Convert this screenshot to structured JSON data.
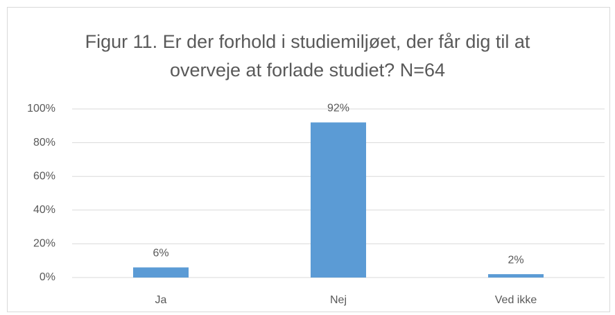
{
  "chart_data": {
    "type": "bar",
    "title": "Figur 11. Er der forhold i studiemiljøet, der får dig til at overveje at forlade studiet? N=64",
    "categories": [
      "Ja",
      "Nej",
      "Ved ikke"
    ],
    "values": [
      6,
      92,
      2
    ],
    "value_labels": [
      "6%",
      "92%",
      "2%"
    ],
    "color": "#5b9bd5",
    "ylim": [
      0,
      100
    ],
    "yticks": [
      {
        "value": 0,
        "label": "0%"
      },
      {
        "value": 20,
        "label": "20%"
      },
      {
        "value": 40,
        "label": "40%"
      },
      {
        "value": 60,
        "label": "60%"
      },
      {
        "value": 80,
        "label": "80%"
      },
      {
        "value": 100,
        "label": "100%"
      }
    ],
    "grid": true
  }
}
